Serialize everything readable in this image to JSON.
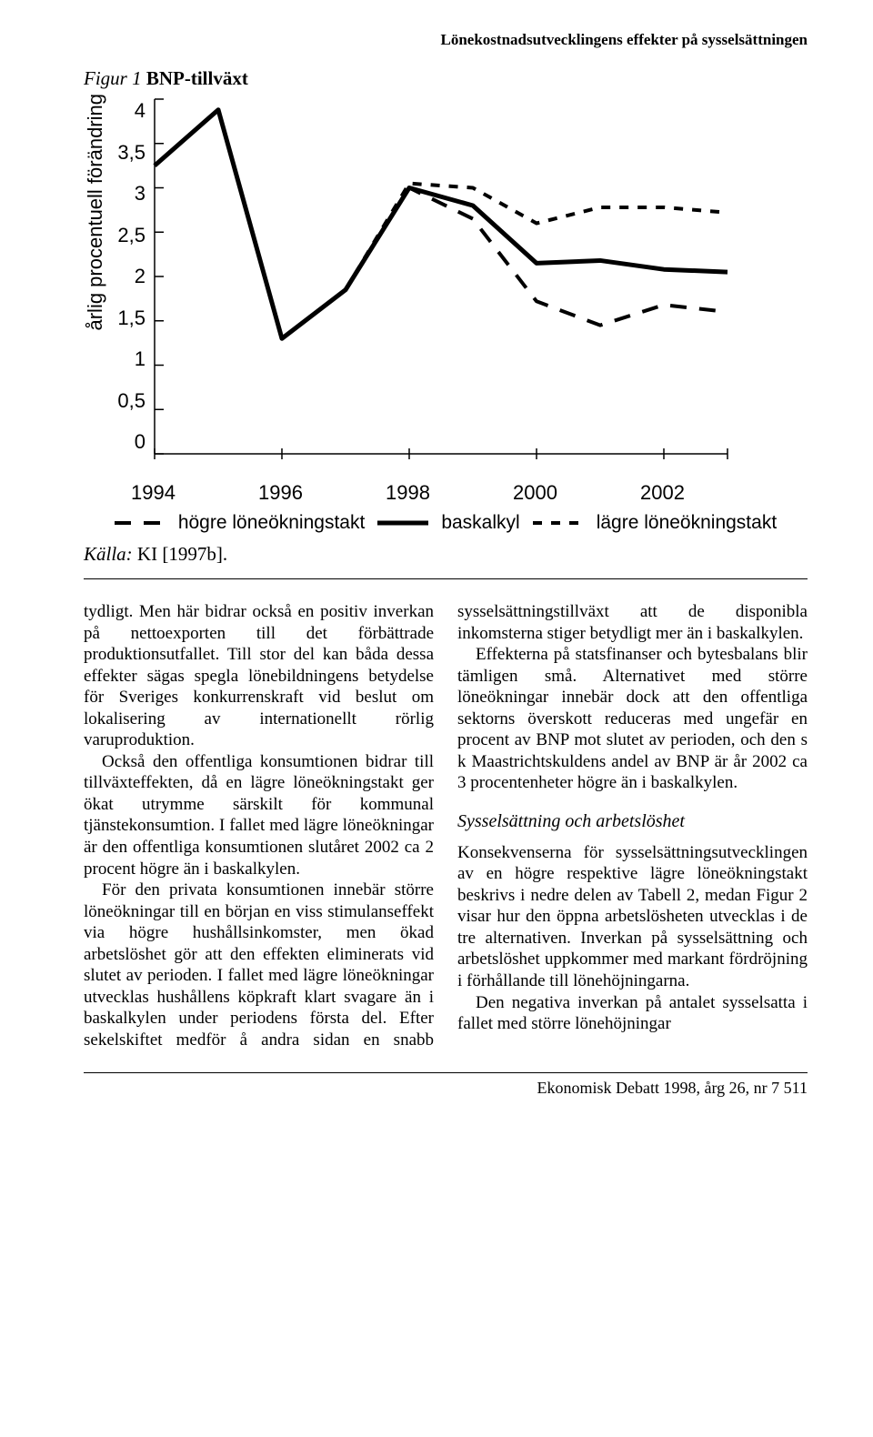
{
  "running_head": "Lönekostnadsutvecklingens effekter på sysselsättningen",
  "figure": {
    "label_prefix": "Figur 1",
    "title": "BNP-tillväxt",
    "ylabel": "årlig procentuell förändring",
    "source_label": "Källa:",
    "source_text": " KI [1997b].",
    "chart": {
      "type": "line",
      "background_color": "#ffffff",
      "axis_color": "#000000",
      "ylim": [
        0,
        4
      ],
      "yticks": [
        0,
        0.5,
        1,
        1.5,
        2,
        2.5,
        3,
        3.5,
        4
      ],
      "ytick_labels": [
        "0",
        "0,5",
        "1",
        "1,5",
        "2",
        "2,5",
        "3",
        "3,5",
        "4"
      ],
      "xlim": [
        1994,
        2003
      ],
      "xticks": [
        1994,
        1996,
        1998,
        2000,
        2002
      ],
      "xtick_labels": [
        "1994",
        "1996",
        "1998",
        "2000",
        "2002"
      ],
      "series": [
        {
          "name": "baskalkyl",
          "color": "#000000",
          "stroke_width": 5,
          "dash": "none",
          "x": [
            1994,
            1995,
            1996,
            1997,
            1998,
            1999,
            2000,
            2001,
            2002,
            2003
          ],
          "y": [
            3.25,
            3.88,
            1.3,
            1.85,
            3.0,
            2.8,
            2.15,
            2.18,
            2.08,
            2.05
          ]
        },
        {
          "name": "högre löneökningstakt",
          "color": "#000000",
          "stroke_width": 4,
          "dash": "18 14",
          "x": [
            1997,
            1998,
            1999,
            2000,
            2001,
            2002,
            2003
          ],
          "y": [
            1.85,
            3.0,
            2.65,
            1.72,
            1.45,
            1.68,
            1.6
          ]
        },
        {
          "name": "lägre löneökningstakt",
          "color": "#000000",
          "stroke_width": 4,
          "dash": "10 10",
          "x": [
            1997,
            1998,
            1999,
            2000,
            2001,
            2002,
            2003
          ],
          "y": [
            1.85,
            3.05,
            3.0,
            2.6,
            2.78,
            2.78,
            2.72
          ]
        }
      ],
      "legend": {
        "items": [
          {
            "label": "högre löneökningstakt",
            "dash": "18 14",
            "stroke_width": 4
          },
          {
            "label": "baskalkyl",
            "dash": "none",
            "stroke_width": 5
          },
          {
            "label": "lägre löneökningstakt",
            "dash": "10 10",
            "stroke_width": 4
          }
        ]
      }
    }
  },
  "body": {
    "p1": "tydligt. Men här bidrar också en positiv inverkan på nettoexporten till det förbättrade produktionsutfallet. Till stor del kan båda dessa effekter sägas spegla lönebildningens betydelse för Sveriges konkurrenskraft vid beslut om lokalisering av internationellt rörlig varuproduktion.",
    "p2": "Också den offentliga konsumtionen bidrar till tillväxteffekten, då en lägre löneökningstakt ger ökat utrymme särskilt för kommunal tjänstekonsumtion. I fallet med lägre löneökningar är den offentliga konsumtionen slutåret 2002 ca 2 procent högre än i baskalkylen.",
    "p3": "För den privata konsumtionen innebär större löneökningar till en början en viss stimulanseffekt via högre hushållsinkomster, men ökad arbetslöshet gör att den effekten eliminerats vid slutet av perioden. I fallet med lägre löneökningar utvecklas hushållens köpkraft klart svagare än i baskalkylen under periodens första del. Efter sekelskiftet medför å andra sidan en snabb sysselsättningstillväxt att de disponibla inkomsterna stiger betydligt mer än i baskalkylen.",
    "p4": "Effekterna på statsfinanser och bytesbalans blir tämligen små. Alternativet med större löneökningar innebär dock att den offentliga sektorns överskott reduceras med ungefär en procent av BNP mot slutet av perioden, och den s k Maastrichtskuldens andel av BNP är år 2002 ca 3 procentenheter högre än i baskalkylen.",
    "h1": "Sysselsättning och arbetslöshet",
    "p5": "Konsekvenserna för sysselsättningsutvecklingen av en högre respektive lägre löneökningstakt beskrivs i nedre delen av Tabell 2, medan Figur 2 visar hur den öppna arbetslösheten utvecklas i de tre alternativen. Inverkan på sysselsättning och arbetslöshet uppkommer med markant fördröjning i förhållande till lönehöjningarna.",
    "p6": "Den negativa inverkan på antalet sysselsatta i fallet med större lönehöjningar"
  },
  "footer": {
    "text": "Ekonomisk Debatt 1998, årg 26, nr 7",
    "page": "511"
  }
}
